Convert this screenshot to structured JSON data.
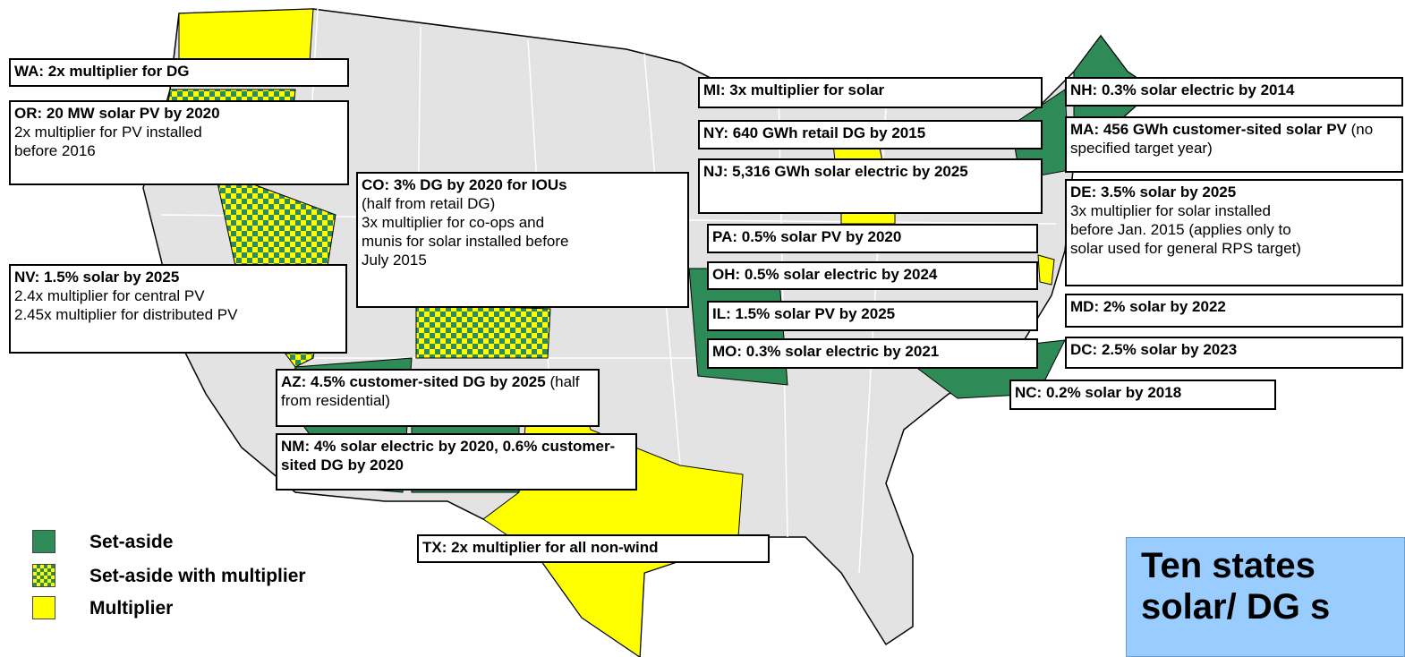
{
  "labels": [
    {
      "bold": "WA: 2x multiplier for DG"
    },
    {
      "bold": "OR: 20 MW solar PV by 2020",
      "lines": [
        "2x multiplier for PV installed",
        "before 2016"
      ]
    },
    {
      "bold": "CO: 3% DG by 2020 for IOUs",
      "lines": [
        "(half from retail DG)",
        "3x multiplier for co-ops and",
        "munis for solar installed before",
        "July 2015"
      ]
    },
    {
      "bold": "NV: 1.5% solar by 2025",
      "lines": [
        "2.4x multiplier for central PV",
        "2.45x multiplier for distributed PV"
      ]
    },
    {
      "bold": "AZ: 4.5% customer-sited DG by 2025",
      "note": "(half from residential)"
    },
    {
      "bold": "NM: 4% solar electric by 2020, 0.6% customer-sited DG by 2020"
    },
    {
      "bold": "TX: 2x multiplier for all non-wind"
    },
    {
      "bold": "MI: 3x multiplier for solar"
    },
    {
      "bold": "NY: 640 GWh retail DG by 2015"
    },
    {
      "bold": "NJ: 5,316 GWh solar electric by 2025"
    },
    {
      "bold": "PA: 0.5% solar PV by 2020"
    },
    {
      "bold": "OH: 0.5% solar electric by 2024"
    },
    {
      "bold": "IL: 1.5% solar PV by 2025"
    },
    {
      "bold": "MO: 0.3% solar electric by 2021"
    },
    {
      "bold": "NH: 0.3% solar electric by 2014"
    },
    {
      "bold": "MA: 456 GWh customer-sited solar PV",
      "note": "(no specified target year)"
    },
    {
      "bold": "DE: 3.5% solar by 2025",
      "lines": [
        "3x multiplier for solar installed",
        "before Jan. 2015 (applies only to",
        "solar used for general RPS target)"
      ]
    },
    {
      "bold": "MD: 2% solar by 2022"
    },
    {
      "bold": "DC: 2.5% solar by 2023"
    },
    {
      "bold": "NC: 0.2% solar by 2018"
    }
  ],
  "legend": [
    "Set-aside",
    "Set-aside with multiplier",
    "Multiplier"
  ],
  "callout": [
    "Ten states",
    "solar/ DG s"
  ]
}
